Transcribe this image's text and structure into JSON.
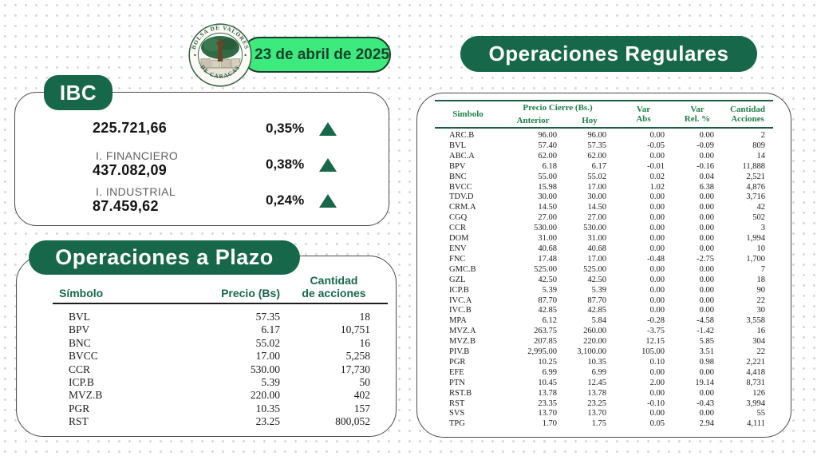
{
  "header": {
    "date_label": "23 de abril de 2025",
    "logo_top": "BOLSA DE VALORES",
    "logo_bottom": "DE CARACAS"
  },
  "colors": {
    "dark_green": "#17684a",
    "bright_green": "#3dea7d",
    "table_header_green": "#1e7e48",
    "up_triangle": "#17684a"
  },
  "ibc": {
    "title": "IBC",
    "rows": [
      {
        "label": "",
        "value": "225.721,66",
        "pct": "0,35%",
        "direction": "up"
      },
      {
        "label": "I. FINANCIERO",
        "value": "437.082,09",
        "pct": "0,38%",
        "direction": "up"
      },
      {
        "label": "I. INDUSTRIAL",
        "value": "87.459,62",
        "pct": "0,24%",
        "direction": "up"
      }
    ]
  },
  "plazo": {
    "title": "Operaciones a Plazo",
    "columns": {
      "symbol": "Símbolo",
      "price": "Precio (Bs)",
      "quantity": "Cantidad\nde acciones"
    },
    "rows": [
      [
        "BVL",
        "57.35",
        "18"
      ],
      [
        "BPV",
        "6.17",
        "10,751"
      ],
      [
        "BNC",
        "55.02",
        "16"
      ],
      [
        "BVCC",
        "17.00",
        "5,258"
      ],
      [
        "CCR",
        "530.00",
        "17,730"
      ],
      [
        "ICP.B",
        "5.39",
        "50"
      ],
      [
        "MVZ.B",
        "220.00",
        "402"
      ],
      [
        "PGR",
        "10.35",
        "157"
      ],
      [
        "RST",
        "23.25",
        "800,052"
      ]
    ]
  },
  "regulares": {
    "title": "Operaciones Regulares",
    "columns": {
      "symbol": "Simbolo",
      "price_group": "Precio Cierre (Bs.)",
      "anterior": "Anterior",
      "hoy": "Hoy",
      "var_abs": "Var\nAbs",
      "var_rel": "Var\nRel. %",
      "cantidad": "Cantidad\nAcciones"
    },
    "rows": [
      [
        "ARC.B",
        "96.00",
        "96.00",
        "0.00",
        "0.00",
        "2"
      ],
      [
        "BVL",
        "57.40",
        "57.35",
        "-0.05",
        "-0.09",
        "809"
      ],
      [
        "ABC.A",
        "62.00",
        "62.00",
        "0.00",
        "0.00",
        "14"
      ],
      [
        "BPV",
        "6.18",
        "6.17",
        "-0.01",
        "-0.16",
        "11,888"
      ],
      [
        "BNC",
        "55.00",
        "55.02",
        "0.02",
        "0.04",
        "2,521"
      ],
      [
        "BVCC",
        "15.98",
        "17.00",
        "1.02",
        "6.38",
        "4,876"
      ],
      [
        "TDV.D",
        "30.00",
        "30.00",
        "0.00",
        "0.00",
        "3,716"
      ],
      [
        "CRM.A",
        "14.50",
        "14.50",
        "0.00",
        "0.00",
        "42"
      ],
      [
        "CGQ",
        "27.00",
        "27.00",
        "0.00",
        "0.00",
        "502"
      ],
      [
        "CCR",
        "530.00",
        "530.00",
        "0.00",
        "0.00",
        "3"
      ],
      [
        "DOM",
        "31.00",
        "31.00",
        "0.00",
        "0.00",
        "1,994"
      ],
      [
        "ENV",
        "40.68",
        "40.68",
        "0.00",
        "0.00",
        "10"
      ],
      [
        "FNC",
        "17.48",
        "17.00",
        "-0.48",
        "-2.75",
        "1,700"
      ],
      [
        "GMC.B",
        "525.00",
        "525.00",
        "0.00",
        "0.00",
        "7"
      ],
      [
        "GZL",
        "42.50",
        "42.50",
        "0.00",
        "0.00",
        "18"
      ],
      [
        "ICP.B",
        "5.39",
        "5.39",
        "0.00",
        "0.00",
        "90"
      ],
      [
        "IVC.A",
        "87.70",
        "87.70",
        "0.00",
        "0.00",
        "22"
      ],
      [
        "IVC.B",
        "42.85",
        "42.85",
        "0.00",
        "0.00",
        "30"
      ],
      [
        "MPA",
        "6.12",
        "5.84",
        "-0.28",
        "-4.58",
        "3,558"
      ],
      [
        "MVZ.A",
        "263.75",
        "260.00",
        "-3.75",
        "-1.42",
        "16"
      ],
      [
        "MVZ.B",
        "207.85",
        "220.00",
        "12.15",
        "5.85",
        "304"
      ],
      [
        "PIV.B",
        "2,995.00",
        "3,100.00",
        "105.00",
        "3.51",
        "22"
      ],
      [
        "PGR",
        "10.25",
        "10.35",
        "0.10",
        "0.98",
        "2,221"
      ],
      [
        "EFE",
        "6.99",
        "6.99",
        "0.00",
        "0.00",
        "4,418"
      ],
      [
        "PTN",
        "10.45",
        "12.45",
        "2.00",
        "19.14",
        "8,731"
      ],
      [
        "RST.B",
        "13.78",
        "13.78",
        "0.00",
        "0.00",
        "126"
      ],
      [
        "RST",
        "23.35",
        "23.25",
        "-0.10",
        "-0.43",
        "3,994"
      ],
      [
        "SVS",
        "13.70",
        "13.70",
        "0.00",
        "0.00",
        "55"
      ],
      [
        "TPG",
        "1.70",
        "1.75",
        "0.05",
        "2.94",
        "4,111"
      ]
    ]
  }
}
